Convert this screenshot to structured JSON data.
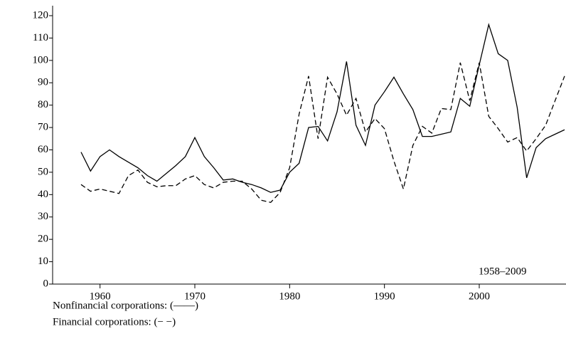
{
  "chart_data": {
    "type": "line",
    "annotation": "1958–2009",
    "legend_lines": [
      "Nonfinancial corporations: (——)",
      "Financial corporations: (− −)"
    ],
    "x": [
      1958,
      1959,
      1960,
      1961,
      1962,
      1963,
      1964,
      1965,
      1966,
      1967,
      1968,
      1969,
      1970,
      1971,
      1972,
      1973,
      1974,
      1975,
      1976,
      1977,
      1978,
      1979,
      1980,
      1981,
      1982,
      1983,
      1984,
      1985,
      1986,
      1987,
      1988,
      1989,
      1990,
      1991,
      1992,
      1993,
      1994,
      1995,
      1996,
      1997,
      1998,
      1999,
      2000,
      2001,
      2002,
      2003,
      2004,
      2005,
      2006,
      2007,
      2008,
      2009
    ],
    "series": [
      {
        "name": "Nonfinancial corporations",
        "color": "#000000",
        "dash": "solid",
        "values": [
          59,
          50.5,
          57,
          60,
          57,
          54.5,
          52,
          48.5,
          46,
          49.5,
          53,
          57,
          65.5,
          57,
          52,
          46.5,
          47,
          45.5,
          44.5,
          43,
          41,
          42,
          50,
          54,
          70,
          70.5,
          64,
          77,
          99.5,
          71,
          62,
          80,
          86,
          92.5,
          85,
          78,
          66,
          66,
          67,
          68,
          83,
          79.5,
          98,
          116,
          103,
          100,
          79,
          47.5,
          61,
          65,
          67,
          69
        ]
      },
      {
        "name": "Financial corporations",
        "color": "#000000",
        "dash": "dashed",
        "values": [
          44.5,
          41.5,
          42.5,
          41.5,
          40.5,
          48.5,
          51,
          45.5,
          43.5,
          44,
          44,
          47,
          48.5,
          44.5,
          43,
          45.5,
          46,
          46,
          42.5,
          37.5,
          36.5,
          41,
          52,
          76,
          93,
          65,
          92.5,
          85,
          75.5,
          83,
          68,
          74,
          69.5,
          55,
          42.5,
          62,
          70.5,
          67.5,
          78.5,
          78,
          99,
          82,
          99,
          75,
          69.5,
          63.5,
          65.5,
          59.5,
          65,
          71,
          82,
          93
        ]
      }
    ],
    "xlim": [
      1955,
      2009
    ],
    "xticks": [
      1960,
      1970,
      1980,
      1990,
      2000
    ],
    "ylim": [
      0,
      120
    ],
    "yticks": [
      0,
      10,
      20,
      30,
      40,
      50,
      60,
      70,
      80,
      90,
      100,
      110,
      120
    ],
    "grid": false
  }
}
